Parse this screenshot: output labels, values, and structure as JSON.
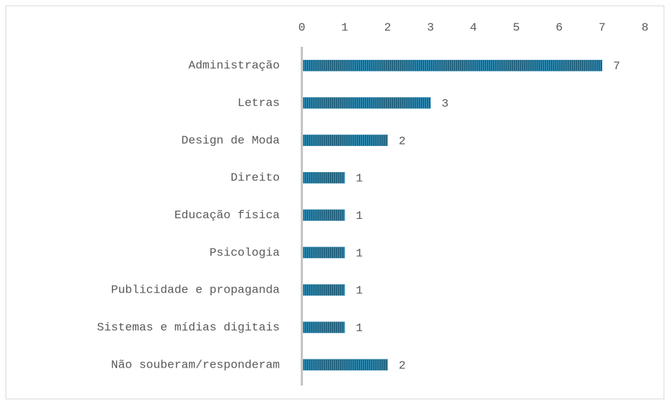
{
  "chart_data": {
    "type": "bar",
    "orientation": "horizontal",
    "categories": [
      "Administração",
      "Letras",
      "Design de Moda",
      "Direito",
      "Educação física",
      "Psicologia",
      "Publicidade e propaganda",
      "Sistemas e mídias digitais",
      "Não souberam/responderam"
    ],
    "values": [
      7,
      3,
      2,
      1,
      1,
      1,
      1,
      1,
      2
    ],
    "color": "#2f87ad",
    "xlim": [
      0,
      8
    ],
    "xticks": [
      0,
      1,
      2,
      3,
      4,
      5,
      6,
      7,
      8
    ],
    "grid": false,
    "data_labels": true
  }
}
